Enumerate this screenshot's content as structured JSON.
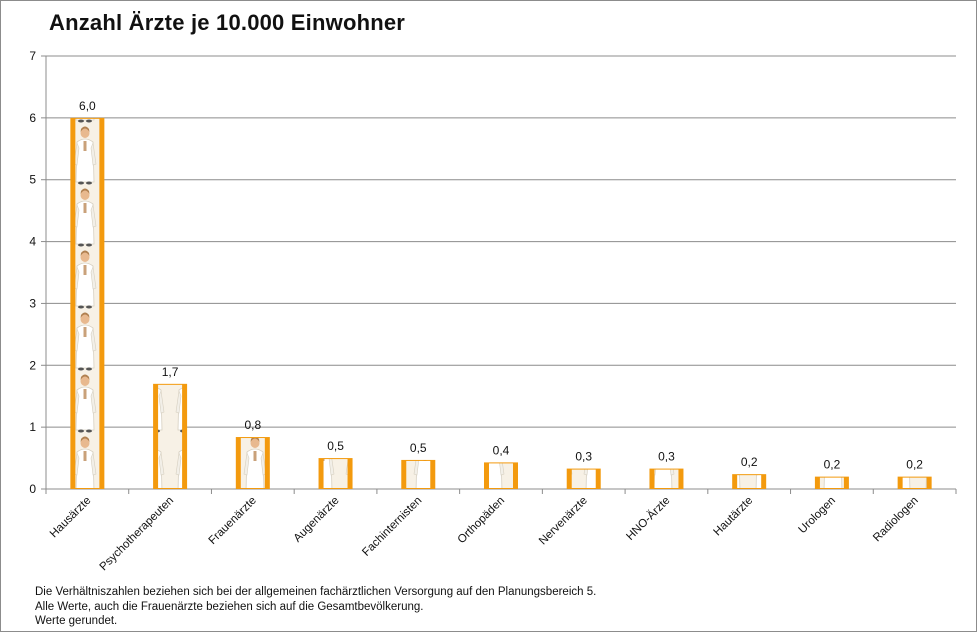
{
  "chart_data": {
    "type": "bar",
    "title": "Anzahl Ärzte je 10.000 Einwohner",
    "categories": [
      "Hausärzte",
      "Psychotherapeuten",
      "Frauenärzte",
      "Augenärzte",
      "Fachinternisten",
      "Orthopäden",
      "Nervenärzte",
      "HNO-Ärzte",
      "Hautärzte",
      "Urologen",
      "Radiologen"
    ],
    "values": [
      6.0,
      1.7,
      0.84,
      0.5,
      0.47,
      0.43,
      0.33,
      0.33,
      0.24,
      0.2,
      0.2
    ],
    "data_labels": [
      "6,0",
      "1,7",
      "0,8",
      "0,5",
      "0,5",
      "0,4",
      "0,3",
      "0,3",
      "0,2",
      "0,2",
      "0,2"
    ],
    "yticks": [
      "0",
      "1",
      "2",
      "3",
      "4",
      "5",
      "6",
      "7"
    ],
    "ylim": [
      0,
      7
    ],
    "xlabel": "",
    "ylabel": "",
    "grid": true,
    "legend": "none",
    "bar_color": "#f39a0e",
    "bar_fill_icon": "doctor-in-white-coat"
  },
  "notes": [
    "Die Verhältniszahlen beziehen sich bei der allgemeinen fachärztlichen Versorgung auf den Planungsbereich 5.",
    "Alle Werte, auch die Frauenärzte beziehen sich auf die Gesamtbevölkerung.",
    "Werte gerundet."
  ]
}
